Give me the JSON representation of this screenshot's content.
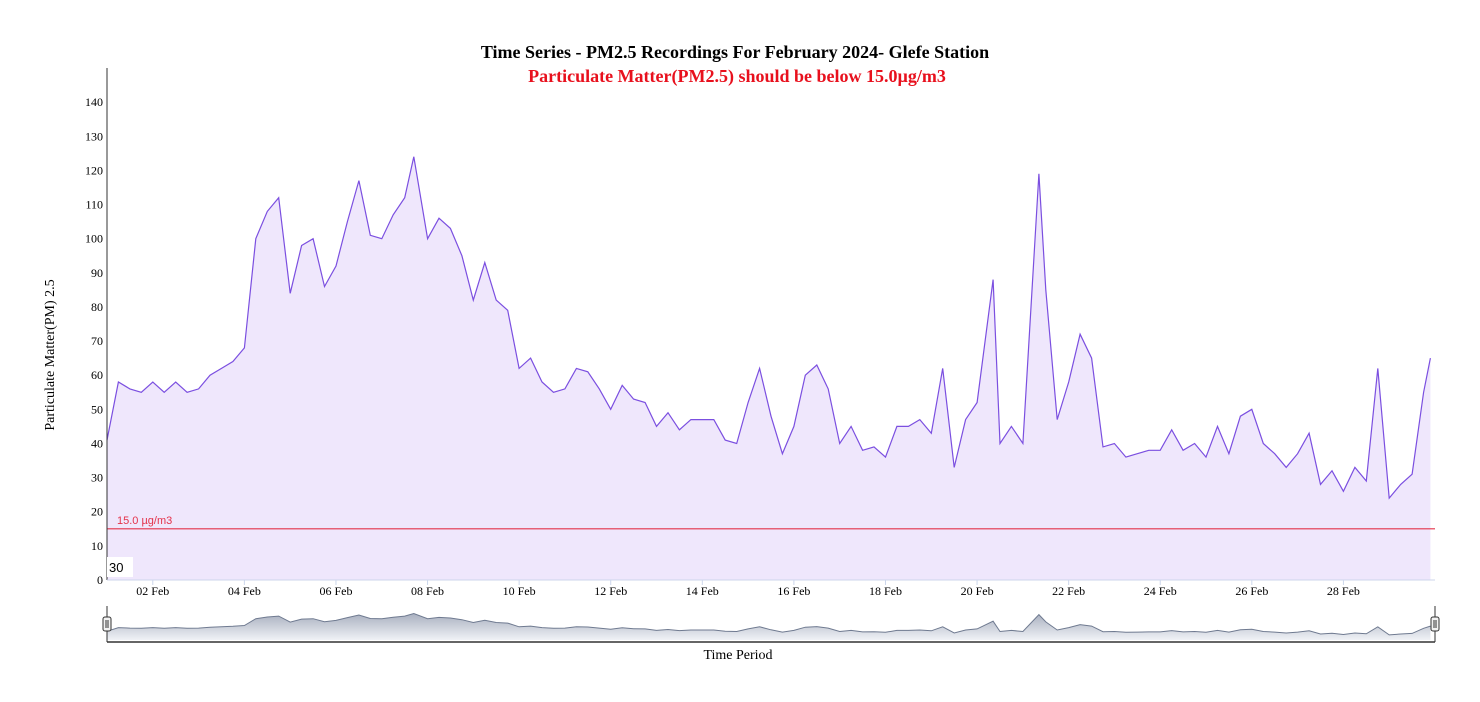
{
  "chart_data": {
    "type": "area",
    "title": "Time Series - PM2.5 Recordings For February 2024- Glefe Station",
    "subtitle": "Particulate Matter(PM2.5) should be below 15.0µg/m3",
    "y_label": "Particulate Matter(PM) 2.5",
    "x_label": "Time Period",
    "badge": 30,
    "color": "#7b4fe0",
    "fill_color": "#efe7fc",
    "threshold": {
      "value": 15,
      "label": "15.0 µg/m3",
      "color": "#e4324a"
    },
    "xlim": [
      1,
      30
    ],
    "ylim": [
      0,
      150
    ],
    "yticks": [
      0,
      10,
      20,
      30,
      40,
      50,
      60,
      70,
      80,
      90,
      100,
      110,
      120,
      130,
      140
    ],
    "xticks": [
      {
        "value": 2,
        "label": "02 Feb"
      },
      {
        "value": 4,
        "label": "04 Feb"
      },
      {
        "value": 6,
        "label": "06 Feb"
      },
      {
        "value": 8,
        "label": "08 Feb"
      },
      {
        "value": 10,
        "label": "10 Feb"
      },
      {
        "value": 12,
        "label": "12 Feb"
      },
      {
        "value": 14,
        "label": "14 Feb"
      },
      {
        "value": 16,
        "label": "16 Feb"
      },
      {
        "value": 18,
        "label": "18 Feb"
      },
      {
        "value": 20,
        "label": "20 Feb"
      },
      {
        "value": 22,
        "label": "22 Feb"
      },
      {
        "value": 24,
        "label": "24 Feb"
      },
      {
        "value": 26,
        "label": "26 Feb"
      },
      {
        "value": 28,
        "label": "28 Feb"
      }
    ],
    "x": [
      1.0,
      1.25,
      1.5,
      1.75,
      2.0,
      2.25,
      2.5,
      2.75,
      3.0,
      3.25,
      3.5,
      3.75,
      4.0,
      4.25,
      4.5,
      4.75,
      5.0,
      5.25,
      5.5,
      5.75,
      6.0,
      6.25,
      6.5,
      6.75,
      7.0,
      7.25,
      7.5,
      7.7,
      8.0,
      8.25,
      8.5,
      8.75,
      9.0,
      9.25,
      9.5,
      9.75,
      10.0,
      10.25,
      10.5,
      10.75,
      11.0,
      11.25,
      11.5,
      11.75,
      12.0,
      12.25,
      12.5,
      12.75,
      13.0,
      13.25,
      13.5,
      13.75,
      14.0,
      14.25,
      14.5,
      14.75,
      15.0,
      15.25,
      15.5,
      15.75,
      16.0,
      16.25,
      16.5,
      16.75,
      17.0,
      17.25,
      17.5,
      17.75,
      18.0,
      18.25,
      18.5,
      18.75,
      19.0,
      19.25,
      19.5,
      19.75,
      20.0,
      20.35,
      20.5,
      20.75,
      21.0,
      21.35,
      21.5,
      21.75,
      22.0,
      22.25,
      22.5,
      22.75,
      23.0,
      23.25,
      23.5,
      23.75,
      24.0,
      24.25,
      24.5,
      24.75,
      25.0,
      25.25,
      25.5,
      25.75,
      26.0,
      26.25,
      26.5,
      26.75,
      27.0,
      27.25,
      27.5,
      27.75,
      28.0,
      28.25,
      28.5,
      28.75,
      29.0,
      29.25,
      29.5,
      29.75,
      29.9
    ],
    "values": [
      41,
      58,
      56,
      55,
      58,
      55,
      58,
      55,
      56,
      60,
      62,
      64,
      68,
      100,
      108,
      112,
      84,
      98,
      100,
      86,
      92,
      105,
      117,
      101,
      100,
      107,
      112,
      124,
      100,
      106,
      103,
      95,
      82,
      93,
      82,
      79,
      62,
      65,
      58,
      55,
      56,
      62,
      61,
      56,
      50,
      57,
      53,
      52,
      45,
      49,
      44,
      47,
      47,
      47,
      41,
      40,
      52,
      62,
      48,
      37,
      45,
      60,
      63,
      56,
      40,
      45,
      38,
      39,
      36,
      45,
      45,
      47,
      43,
      62,
      33,
      47,
      52,
      88,
      40,
      45,
      40,
      119,
      85,
      47,
      58,
      72,
      65,
      39,
      40,
      36,
      37,
      38,
      38,
      44,
      38,
      40,
      36,
      45,
      37,
      48,
      50,
      40,
      37,
      33,
      37,
      43,
      28,
      32,
      26,
      33,
      29,
      62,
      24,
      28,
      31,
      55,
      65
    ]
  }
}
